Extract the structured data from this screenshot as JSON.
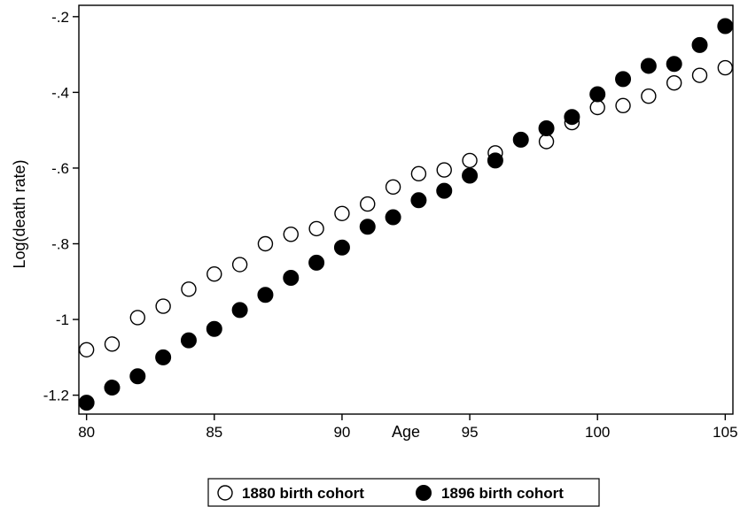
{
  "chart_data": {
    "type": "scatter",
    "title": "",
    "xlabel": "Age",
    "ylabel": "Log(death rate)",
    "xlim": [
      79.7,
      105.3
    ],
    "ylim": [
      -1.25,
      -0.17
    ],
    "x_ticks": [
      80,
      85,
      90,
      95,
      100,
      105
    ],
    "x_tick_labels": [
      "80",
      "85",
      "90",
      "95",
      "100",
      "105"
    ],
    "y_ticks": [
      -1.2,
      -1.0,
      -0.8,
      -0.6,
      -0.4,
      -0.2
    ],
    "y_tick_labels": [
      "-1.2",
      "-1",
      "-.8",
      "-.6",
      "-.4",
      "-.2"
    ],
    "grid": false,
    "legend_position": "bottom",
    "series": [
      {
        "name": "1880 birth cohort",
        "marker": "hollow-circle",
        "color": "#000000",
        "x": [
          80,
          81,
          82,
          83,
          84,
          85,
          86,
          87,
          88,
          89,
          90,
          91,
          92,
          93,
          94,
          95,
          96,
          97,
          98,
          99,
          100,
          101,
          102,
          103,
          104,
          105
        ],
        "y": [
          -1.08,
          -1.065,
          -0.995,
          -0.965,
          -0.92,
          -0.88,
          -0.855,
          -0.8,
          -0.775,
          -0.76,
          -0.72,
          -0.695,
          -0.65,
          -0.615,
          -0.605,
          -0.58,
          -0.56,
          -0.525,
          -0.53,
          -0.48,
          -0.44,
          -0.435,
          -0.41,
          -0.375,
          -0.355,
          -0.335
        ]
      },
      {
        "name": "1896 birth cohort",
        "marker": "filled-circle",
        "color": "#000000",
        "x": [
          80,
          81,
          82,
          83,
          84,
          85,
          86,
          87,
          88,
          89,
          90,
          91,
          92,
          93,
          94,
          95,
          96,
          97,
          98,
          99,
          100,
          101,
          102,
          103,
          104,
          105
        ],
        "y": [
          -1.22,
          -1.18,
          -1.15,
          -1.1,
          -1.055,
          -1.025,
          -0.975,
          -0.935,
          -0.89,
          -0.85,
          -0.81,
          -0.755,
          -0.73,
          -0.685,
          -0.66,
          -0.62,
          -0.58,
          -0.525,
          -0.495,
          -0.465,
          -0.405,
          -0.365,
          -0.33,
          -0.325,
          -0.275,
          -0.225
        ]
      }
    ]
  }
}
